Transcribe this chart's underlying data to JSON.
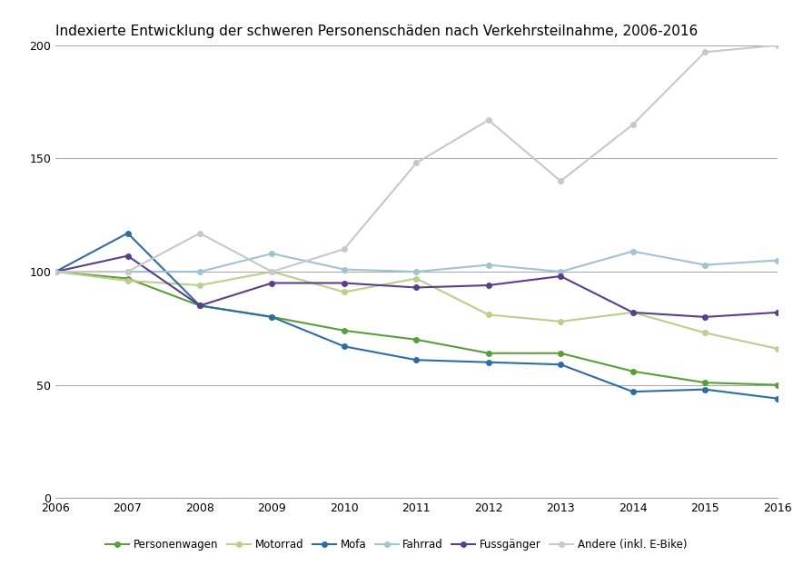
{
  "title": "Indexierte Entwicklung der schweren Personenschäden nach Verkehrsteilnahme, 2006-2016",
  "years": [
    2006,
    2007,
    2008,
    2009,
    2010,
    2011,
    2012,
    2013,
    2014,
    2015,
    2016
  ],
  "series": {
    "Personenwagen": {
      "values": [
        100,
        97,
        85,
        80,
        74,
        70,
        64,
        64,
        56,
        51,
        50
      ],
      "color": "#5a9e3a",
      "marker": "o"
    },
    "Motorrad": {
      "values": [
        100,
        96,
        94,
        100,
        91,
        97,
        81,
        78,
        82,
        73,
        66
      ],
      "color": "#b8d08a",
      "marker": "o"
    },
    "Mofa": {
      "values": [
        100,
        117,
        85,
        80,
        67,
        61,
        60,
        59,
        47,
        48,
        44
      ],
      "color": "#2e6da4",
      "marker": "o"
    },
    "Fahrrad": {
      "values": [
        100,
        100,
        100,
        108,
        101,
        100,
        103,
        100,
        109,
        103,
        105
      ],
      "color": "#9dc3d4",
      "marker": "o"
    },
    "Fussgänger": {
      "values": [
        100,
        107,
        85,
        95,
        95,
        93,
        94,
        98,
        82,
        80,
        82
      ],
      "color": "#5a3e8a",
      "marker": "o"
    },
    "Andere (inkl. E-Bike)": {
      "values": [
        100,
        100,
        117,
        100,
        110,
        148,
        167,
        140,
        165,
        197,
        200
      ],
      "color": "#c8c8c8",
      "marker": "o"
    }
  },
  "ylim": [
    0,
    200
  ],
  "yticks": [
    0,
    50,
    100,
    150,
    200
  ],
  "grid_color": "#aaaaaa",
  "bg_color": "#ffffff",
  "legend_order": [
    "Personenwagen",
    "Motorrad",
    "Mofa",
    "Fahrrad",
    "Fussgänger",
    "Andere (inkl. E-Bike)"
  ],
  "title_fontsize": 11,
  "tick_fontsize": 9,
  "legend_fontsize": 8.5,
  "linewidth": 1.5,
  "markersize": 4
}
